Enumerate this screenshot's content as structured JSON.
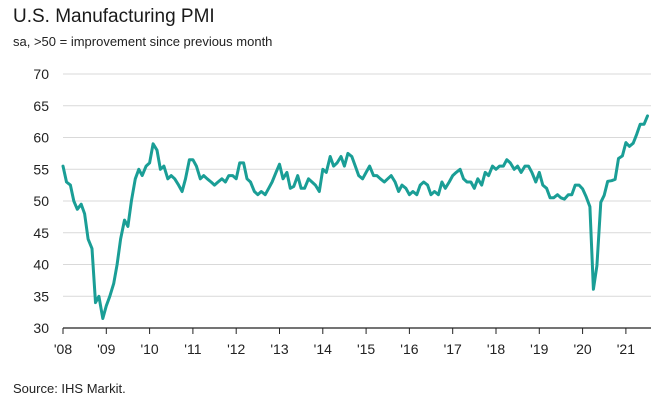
{
  "chart_data": {
    "type": "line",
    "title": "U.S. Manufacturing PMI",
    "subtitle": "sa, >50 = improvement since previous month",
    "source": "Source: IHS Markit.",
    "ylim": [
      30,
      70
    ],
    "yticks": [
      30,
      35,
      40,
      45,
      50,
      55,
      60,
      65,
      70
    ],
    "xlim": [
      2008.0,
      2021.58
    ],
    "xticks": [
      {
        "value": 2008,
        "label": "'08"
      },
      {
        "value": 2009,
        "label": "'09"
      },
      {
        "value": 2010,
        "label": "'10"
      },
      {
        "value": 2011,
        "label": "'11"
      },
      {
        "value": 2012,
        "label": "'12"
      },
      {
        "value": 2013,
        "label": "'13"
      },
      {
        "value": 2014,
        "label": "'14"
      },
      {
        "value": 2015,
        "label": "'15"
      },
      {
        "value": 2016,
        "label": "'16"
      },
      {
        "value": 2017,
        "label": "'17"
      },
      {
        "value": 2018,
        "label": "'18"
      },
      {
        "value": 2019,
        "label": "'19"
      },
      {
        "value": 2020,
        "label": "'20"
      },
      {
        "value": 2021,
        "label": "'21"
      }
    ],
    "grid": true,
    "line_color": "#1a9e96",
    "series": [
      {
        "x": [
          2008.0,
          2008.08,
          2008.17,
          2008.25,
          2008.33,
          2008.42,
          2008.5,
          2008.58,
          2008.67,
          2008.75,
          2008.83,
          2008.92,
          2009.0,
          2009.08,
          2009.17,
          2009.25,
          2009.33,
          2009.42,
          2009.5,
          2009.58,
          2009.67,
          2009.75,
          2009.83,
          2009.92,
          2010.0,
          2010.08,
          2010.17,
          2010.25,
          2010.33,
          2010.42,
          2010.5,
          2010.58,
          2010.67,
          2010.75,
          2010.83,
          2010.92,
          2011.0,
          2011.08,
          2011.17,
          2011.25,
          2011.33,
          2011.42,
          2011.5,
          2011.58,
          2011.67,
          2011.75,
          2011.83,
          2011.92,
          2012.0,
          2012.08,
          2012.17,
          2012.25,
          2012.33,
          2012.42,
          2012.5,
          2012.58,
          2012.67,
          2012.75,
          2012.83,
          2012.92,
          2013.0,
          2013.08,
          2013.17,
          2013.25,
          2013.33,
          2013.42,
          2013.5,
          2013.58,
          2013.67,
          2013.75,
          2013.83,
          2013.92,
          2014.0,
          2014.08,
          2014.17,
          2014.25,
          2014.33,
          2014.42,
          2014.5,
          2014.58,
          2014.67,
          2014.75,
          2014.83,
          2014.92,
          2015.0,
          2015.08,
          2015.17,
          2015.25,
          2015.33,
          2015.42,
          2015.5,
          2015.58,
          2015.67,
          2015.75,
          2015.83,
          2015.92,
          2016.0,
          2016.08,
          2016.17,
          2016.25,
          2016.33,
          2016.42,
          2016.5,
          2016.58,
          2016.67,
          2016.75,
          2016.83,
          2016.92,
          2017.0,
          2017.08,
          2017.17,
          2017.25,
          2017.33,
          2017.42,
          2017.5,
          2017.58,
          2017.67,
          2017.75,
          2017.83,
          2017.92,
          2018.0,
          2018.08,
          2018.17,
          2018.25,
          2018.33,
          2018.42,
          2018.5,
          2018.58,
          2018.67,
          2018.75,
          2018.83,
          2018.92,
          2019.0,
          2019.08,
          2019.17,
          2019.25,
          2019.33,
          2019.42,
          2019.5,
          2019.58,
          2019.67,
          2019.75,
          2019.83,
          2019.92,
          2020.0,
          2020.08,
          2020.17,
          2020.25,
          2020.33,
          2020.42,
          2020.5,
          2020.58,
          2020.67,
          2020.75,
          2020.83,
          2020.92,
          2021.0,
          2021.08,
          2021.17,
          2021.25,
          2021.33,
          2021.42,
          2021.5
        ],
        "values": [
          55.5,
          53.0,
          52.5,
          50.0,
          48.7,
          49.5,
          48.0,
          44.0,
          42.5,
          34.0,
          35.0,
          31.5,
          33.5,
          35.0,
          37.0,
          40.0,
          44.0,
          47.0,
          46.0,
          50.0,
          53.5,
          55.0,
          54.0,
          55.5,
          56.0,
          59.0,
          58.0,
          55.0,
          55.5,
          53.5,
          54.0,
          53.5,
          52.5,
          51.5,
          53.5,
          56.5,
          56.5,
          55.5,
          53.5,
          54.0,
          53.5,
          53.0,
          52.5,
          53.0,
          53.5,
          53.0,
          54.0,
          54.0,
          53.5,
          56.0,
          56.0,
          53.5,
          53.0,
          51.5,
          51.0,
          51.5,
          51.0,
          52.0,
          53.0,
          54.5,
          55.8,
          53.5,
          54.5,
          52.0,
          52.3,
          54.0,
          52.0,
          52.0,
          53.5,
          53.0,
          52.5,
          51.5,
          55.0,
          54.5,
          57.0,
          55.5,
          56.0,
          57.0,
          55.5,
          57.5,
          57.0,
          55.5,
          54.0,
          53.5,
          54.5,
          55.5,
          54.0,
          54.0,
          53.5,
          53.0,
          53.5,
          54.0,
          53.0,
          51.5,
          52.5,
          52.0,
          51.0,
          51.5,
          51.0,
          52.5,
          53.0,
          52.5,
          51.0,
          51.5,
          51.0,
          53.0,
          52.0,
          53.0,
          54.0,
          54.5,
          55.0,
          53.5,
          53.0,
          53.0,
          52.0,
          53.5,
          52.5,
          54.5,
          54.0,
          55.5,
          55.0,
          55.5,
          55.5,
          56.5,
          56.0,
          55.0,
          55.5,
          54.5,
          55.5,
          55.5,
          54.5,
          53.0,
          54.5,
          52.5,
          52.0,
          50.5,
          50.5,
          51.0,
          50.5,
          50.3,
          51.0,
          51.0,
          52.5,
          52.5,
          51.9,
          50.7,
          49.1,
          36.1,
          39.8,
          49.8,
          50.9,
          53.1,
          53.2,
          53.4,
          56.7,
          57.1,
          59.2,
          58.6,
          59.1,
          60.5,
          62.1,
          62.1,
          63.4
        ]
      }
    ]
  }
}
